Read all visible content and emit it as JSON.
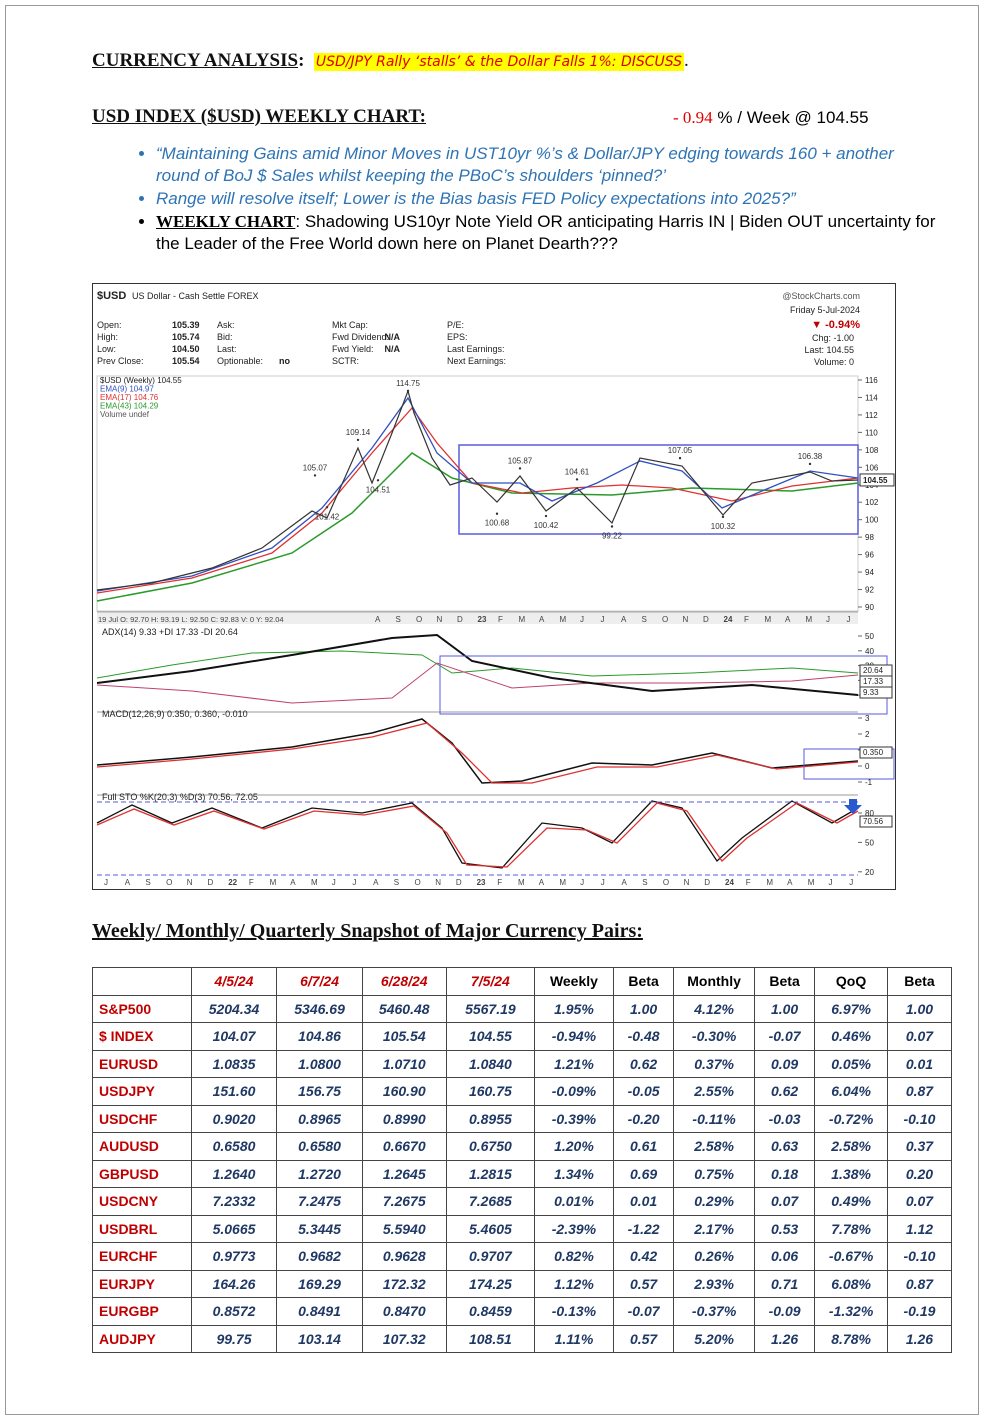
{
  "header": {
    "label": "CURRENCY ANALYSIS",
    "label_suffix": ":",
    "highlight": "USD/JPY Rally ‘stalls’ & the Dollar Falls 1%: DISCUSS",
    "highlight_suffix": "."
  },
  "subheader": {
    "label": "USD INDEX ($USD) WEEKLY CHART:",
    "change": "- 0.94",
    "change_suffix": "% / Week @ 104.55"
  },
  "bullets": [
    {
      "text": "“Maintaining Gains amid Minor Moves in UST10yr %’s & Dollar/JPY edging towards 160 + another round of BoJ $ Sales whilst keeping the PBoC’s shoulders ‘pinned?’"
    },
    {
      "text": "Range will resolve itself; Lower is the Bias basis FED Policy expectations into 2025?”"
    },
    {
      "lead": "WEEKLY CHART",
      "text": ": Shadowing US10yr Note Yield OR anticipating Harris IN | Biden OUT uncertainty for the Leader of the Free World down here on Planet Dearth???"
    }
  ],
  "chart_image": {
    "symbol": "$USD",
    "name": "US Dollar - Cash Settle FOREX",
    "source": "@StockCharts.com",
    "date": "Friday 5-Jul-2024",
    "change": "▼ -0.94%",
    "fields": [
      [
        {
          "label": "Open:",
          "value": "105.39"
        },
        {
          "label": "High:",
          "value": "105.74"
        },
        {
          "label": "Low:",
          "value": "104.50"
        },
        {
          "label": "Prev Close:",
          "value": "105.54"
        }
      ],
      [
        {
          "label": "Ask:"
        },
        {
          "label": "Bid:"
        },
        {
          "label": "Last:"
        },
        {
          "label": "Optionable:",
          "value": "no"
        }
      ],
      [
        {
          "label": "Mkt Cap:"
        },
        {
          "label": "Fwd Dividend:",
          "value": "N/A"
        },
        {
          "label": "Fwd Yield:",
          "value": "N/A"
        },
        {
          "label": "SCTR:"
        }
      ],
      [
        {
          "label": "P/E:"
        },
        {
          "label": "EPS:"
        },
        {
          "label": "Last Earnings:"
        },
        {
          "label": "Next Earnings:"
        }
      ]
    ],
    "right_fields": [
      "Chg: -1.00",
      "Last: 104.55",
      "Volume: 0"
    ],
    "legend": [
      "$USD (Weekly) 104.55",
      "EMA(9) 104.97",
      "EMA(17) 104.76",
      "EMA(43) 104.29",
      "Volume undef"
    ],
    "yticks": [
      90,
      92,
      94,
      96,
      98,
      100,
      102,
      104,
      106,
      108,
      110,
      112,
      114,
      116
    ],
    "last": 104.55,
    "annotations": [
      114.75,
      109.14,
      105.07,
      101.42,
      104.51,
      105.87,
      104.61,
      107.05,
      100.68,
      100.42,
      99.22,
      100.32,
      106.38
    ],
    "x_strip": "19 Jul O: 92.70 H: 93.19 L: 92.50 C: 92.83 V: 0 Y: 92.04",
    "x_months": [
      "A",
      "S",
      "O",
      "N",
      "D",
      "23",
      "F",
      "M",
      "A",
      "M",
      "J",
      "J",
      "A",
      "S",
      "O",
      "N",
      "D",
      "24",
      "F",
      "M",
      "A",
      "M",
      "J",
      "J"
    ],
    "adx": {
      "label": "ADX(14) 9.33 +DI 17.33 -DI 20.64",
      "ticks": [
        50,
        40,
        30,
        20,
        10
      ],
      "boxes": [
        "20.64",
        "17.33",
        "9.33"
      ]
    },
    "macd": {
      "label": "MACD(12,26,9) 0.350, 0.360, -0.010",
      "ticks": [
        3,
        2,
        1,
        0,
        -1
      ],
      "boxes": [
        "0.350"
      ]
    },
    "sto": {
      "label": "Full STO %K(20,3) %D(3) 70.56, 72.05",
      "ticks": [
        80,
        50,
        20
      ],
      "boxes": [
        "70.56"
      ]
    },
    "bottom_months": [
      "J",
      "A",
      "S",
      "O",
      "N",
      "D",
      "22",
      "F",
      "M",
      "A",
      "M",
      "J",
      "J",
      "A",
      "S",
      "O",
      "N",
      "D",
      "23",
      "F",
      "M",
      "A",
      "M",
      "J",
      "J",
      "A",
      "S",
      "O",
      "N",
      "D",
      "24",
      "F",
      "M",
      "A",
      "M",
      "J",
      "J"
    ]
  },
  "table": {
    "title": "Weekly/ Monthly/ Quarterly Snapshot of Major Currency Pairs:",
    "columns": [
      "4/5/24",
      "6/7/24",
      "6/28/24",
      "7/5/24",
      "Weekly",
      "Beta",
      "Monthly",
      "Beta",
      "QoQ",
      "Beta"
    ],
    "rows": [
      [
        "S&P500",
        "5204.34",
        "5346.69",
        "5460.48",
        "5567.19",
        "1.95%",
        "1.00",
        "4.12%",
        "1.00",
        "6.97%",
        "1.00"
      ],
      [
        "$ INDEX",
        "104.07",
        "104.86",
        "105.54",
        "104.55",
        "-0.94%",
        "-0.48",
        "-0.30%",
        "-0.07",
        "0.46%",
        "0.07"
      ],
      [
        "EURUSD",
        "1.0835",
        "1.0800",
        "1.0710",
        "1.0840",
        "1.21%",
        "0.62",
        "0.37%",
        "0.09",
        "0.05%",
        "0.01"
      ],
      [
        "USDJPY",
        "151.60",
        "156.75",
        "160.90",
        "160.75",
        "-0.09%",
        "-0.05",
        "2.55%",
        "0.62",
        "6.04%",
        "0.87"
      ],
      [
        "USDCHF",
        "0.9020",
        "0.8965",
        "0.8990",
        "0.8955",
        "-0.39%",
        "-0.20",
        "-0.11%",
        "-0.03",
        "-0.72%",
        "-0.10"
      ],
      [
        "AUDUSD",
        "0.6580",
        "0.6580",
        "0.6670",
        "0.6750",
        "1.20%",
        "0.61",
        "2.58%",
        "0.63",
        "2.58%",
        "0.37"
      ],
      [
        "GBPUSD",
        "1.2640",
        "1.2720",
        "1.2645",
        "1.2815",
        "1.34%",
        "0.69",
        "0.75%",
        "0.18",
        "1.38%",
        "0.20"
      ],
      [
        "USDCNY",
        "7.2332",
        "7.2475",
        "7.2675",
        "7.2685",
        "0.01%",
        "0.01",
        "0.29%",
        "0.07",
        "0.49%",
        "0.07"
      ],
      [
        "USDBRL",
        "5.0665",
        "5.3445",
        "5.5940",
        "5.4605",
        "-2.39%",
        "-1.22",
        "2.17%",
        "0.53",
        "7.78%",
        "1.12"
      ],
      [
        "EURCHF",
        "0.9773",
        "0.9682",
        "0.9628",
        "0.9707",
        "0.82%",
        "0.42",
        "0.26%",
        "0.06",
        "-0.67%",
        "-0.10"
      ],
      [
        "EURJPY",
        "164.26",
        "169.29",
        "172.32",
        "174.25",
        "1.12%",
        "0.57",
        "2.93%",
        "0.71",
        "6.08%",
        "0.87"
      ],
      [
        "EURGBP",
        "0.8572",
        "0.8491",
        "0.8470",
        "0.8459",
        "-0.13%",
        "-0.07",
        "-0.37%",
        "-0.09",
        "-1.32%",
        "-0.19"
      ],
      [
        "AUDJPY",
        "99.75",
        "103.14",
        "107.32",
        "108.51",
        "1.11%",
        "0.57",
        "5.20%",
        "1.26",
        "8.78%",
        "1.26"
      ]
    ]
  }
}
